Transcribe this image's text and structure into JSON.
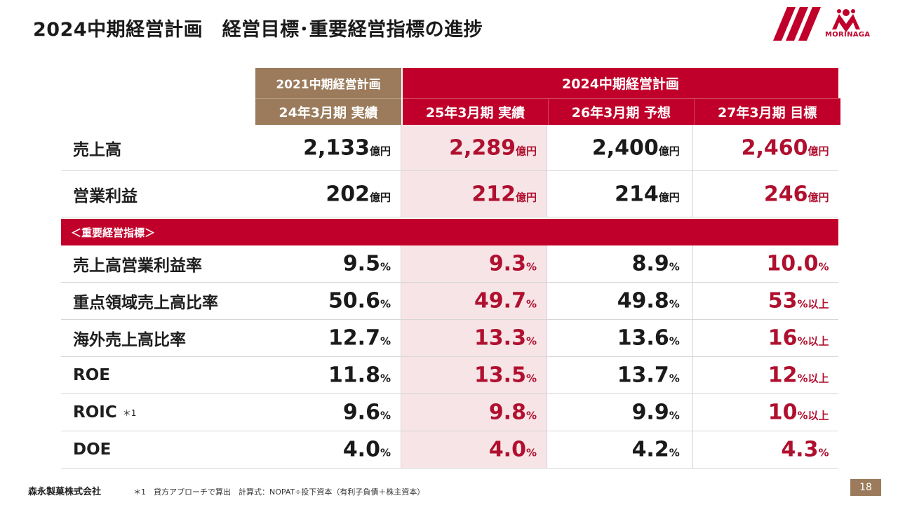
{
  "page": {
    "title": "2024中期経営計画　経営目標･重要経営指標の進捗",
    "logo_text": "MORINAGA",
    "company": "森永製菓株式会社",
    "footnote": "＊1　貸方アプローチで算出　計算式：NOPAT÷投下資本（有利子負債＋株主資本）",
    "page_number": "18",
    "accent_color": "#c0002a",
    "brown_color": "#9b7b5b"
  },
  "table": {
    "header_group_prev": "2021中期経営計画",
    "header_group_current": "2024中期経営計画",
    "columns": [
      "24年3月期 実績",
      "25年3月期 実績",
      "26年3月期 予想",
      "27年3月期 目標"
    ],
    "section_label": "＜重要経営指標＞",
    "top_rows": [
      {
        "label": "売上高",
        "values": [
          {
            "num": "2,133",
            "unit": "億円"
          },
          {
            "num": "2,289",
            "unit": "億円"
          },
          {
            "num": "2,400",
            "unit": "億円"
          },
          {
            "num": "2,460",
            "unit": "億円"
          }
        ]
      },
      {
        "label": "営業利益",
        "values": [
          {
            "num": "202",
            "unit": "億円"
          },
          {
            "num": "212",
            "unit": "億円"
          },
          {
            "num": "214",
            "unit": "億円"
          },
          {
            "num": "246",
            "unit": "億円"
          }
        ]
      }
    ],
    "kpi_rows": [
      {
        "label": "売上高営業利益率",
        "sup": "",
        "values": [
          {
            "num": "9.5",
            "unit": "%"
          },
          {
            "num": "9.3",
            "unit": "%"
          },
          {
            "num": "8.9",
            "unit": "%"
          },
          {
            "num": "10.0",
            "unit": "%"
          }
        ]
      },
      {
        "label": "重点領域売上高比率",
        "sup": "",
        "values": [
          {
            "num": "50.6",
            "unit": "%"
          },
          {
            "num": "49.7",
            "unit": "%"
          },
          {
            "num": "49.8",
            "unit": "%"
          },
          {
            "num": "53",
            "unit": "%以上"
          }
        ]
      },
      {
        "label": "海外売上高比率",
        "sup": "",
        "values": [
          {
            "num": "12.7",
            "unit": "%"
          },
          {
            "num": "13.3",
            "unit": "%"
          },
          {
            "num": "13.6",
            "unit": "%"
          },
          {
            "num": "16",
            "unit": "%以上"
          }
        ]
      },
      {
        "label": "ROE",
        "sup": "",
        "values": [
          {
            "num": "11.8",
            "unit": "%"
          },
          {
            "num": "13.5",
            "unit": "%"
          },
          {
            "num": "13.7",
            "unit": "%"
          },
          {
            "num": "12",
            "unit": "%以上"
          }
        ]
      },
      {
        "label": "ROIC",
        "sup": "＊1",
        "values": [
          {
            "num": "9.6",
            "unit": "%"
          },
          {
            "num": "9.8",
            "unit": "%"
          },
          {
            "num": "9.9",
            "unit": "%"
          },
          {
            "num": "10",
            "unit": "%以上"
          }
        ]
      },
      {
        "label": "DOE",
        "sup": "",
        "values": [
          {
            "num": "4.0",
            "unit": "%"
          },
          {
            "num": "4.0",
            "unit": "%"
          },
          {
            "num": "4.2",
            "unit": "%"
          },
          {
            "num": "4.3",
            "unit": "%"
          }
        ]
      }
    ]
  }
}
